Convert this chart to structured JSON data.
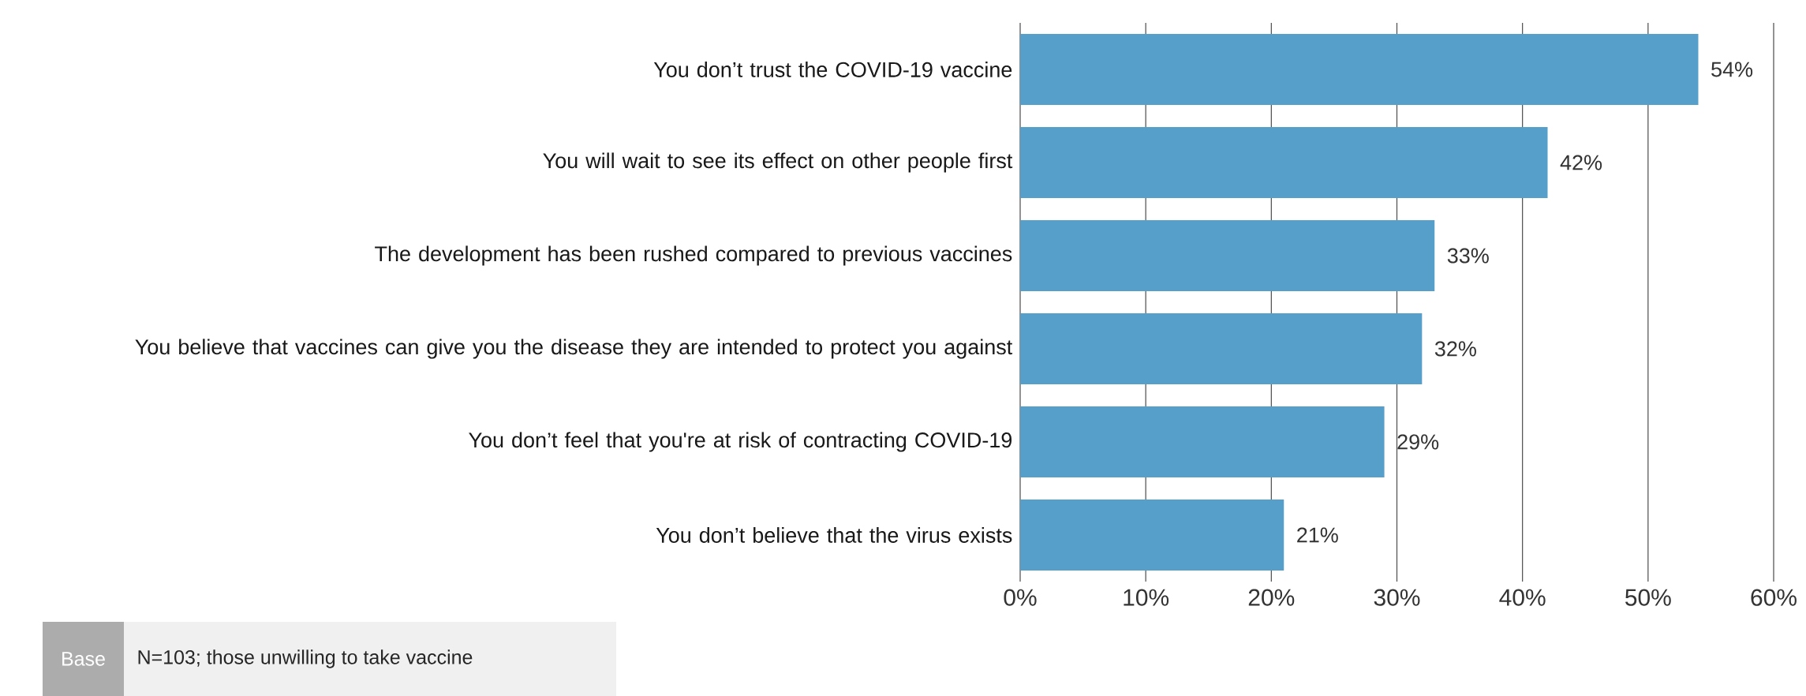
{
  "chart_data": {
    "type": "bar",
    "orientation": "horizontal",
    "categories": [
      "You don’t trust the COVID-19 vaccine",
      "You will wait to see its effect on other people first",
      "The development has been rushed compared to previous vaccines",
      "You believe that vaccines can give you the disease they are intended to protect you against",
      "You don’t feel that you're at risk of contracting COVID-19",
      "You don’t believe that the virus exists"
    ],
    "values": [
      54,
      42,
      33,
      32,
      29,
      21
    ],
    "value_labels": [
      "54%",
      "42%",
      "33%",
      "32%",
      "29%",
      "21%"
    ],
    "color": "#569fca",
    "xlim": [
      0,
      60
    ],
    "xticks": [
      {
        "value": 0,
        "label": "0%"
      },
      {
        "value": 10,
        "label": "10%"
      },
      {
        "value": 20,
        "label": "20%"
      },
      {
        "value": 30,
        "label": "30%"
      },
      {
        "value": 40,
        "label": "40%"
      },
      {
        "value": 50,
        "label": "50%"
      },
      {
        "value": 60,
        "label": "60%"
      }
    ],
    "grid": "x",
    "annotations": [
      "Base",
      "N=103; those unwilling to take vaccine"
    ]
  }
}
